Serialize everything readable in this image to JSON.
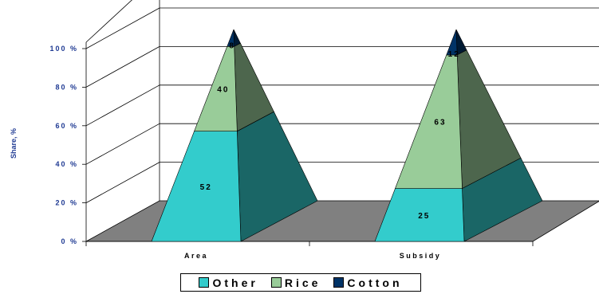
{
  "chart_data": {
    "type": "3d-pyramid-stacked-bar",
    "categories": [
      "Area",
      "Subsidy"
    ],
    "ylabel": "Share, %",
    "ylim": [
      0,
      100
    ],
    "yticks": [
      "0 %",
      "20 %",
      "40 %",
      "60 %",
      "80 %",
      "100 %"
    ],
    "grid": true,
    "legend_position": "bottom",
    "series": [
      {
        "name": "Other",
        "values": [
          52,
          25
        ],
        "color": "#33cccc"
      },
      {
        "name": "Rice",
        "values": [
          40,
          63
        ],
        "color": "#99cc99"
      },
      {
        "name": "Cotton",
        "values": [
          8,
          12
        ],
        "color": "#003366"
      }
    ]
  }
}
